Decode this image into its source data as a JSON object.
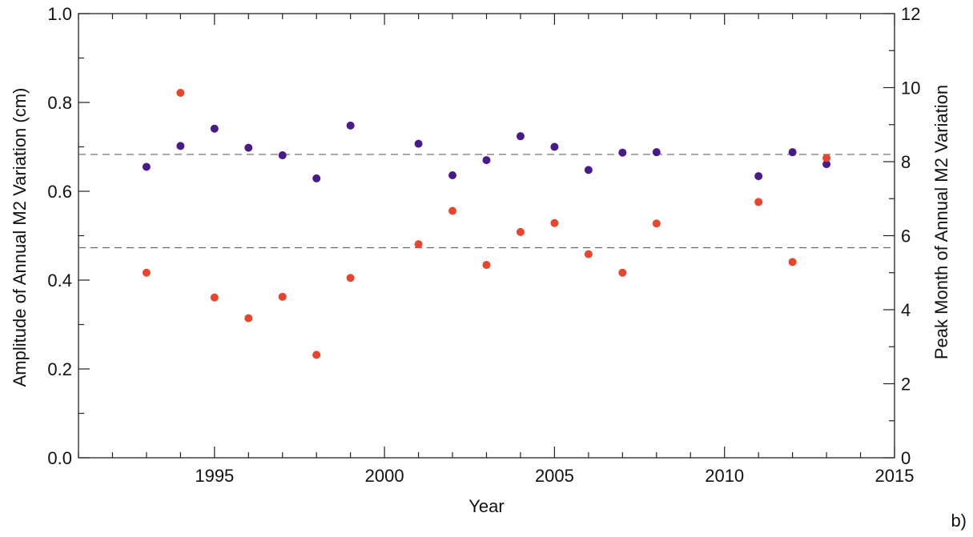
{
  "chart_data": {
    "type": "scatter",
    "title": "",
    "xlabel": "Year",
    "ylabel_left": "Amplitude of Annual M2 Variation (cm)",
    "ylabel_right": "Peak Month of Annual M2 Variation",
    "panel_label": "b)",
    "xlim": [
      1991,
      2015
    ],
    "ylim_left": [
      0.0,
      1.0
    ],
    "ylim_right": [
      0,
      12
    ],
    "x_ticks": [
      "1995",
      "2000",
      "2005",
      "2010",
      "2015"
    ],
    "y_left_ticks": [
      "0.0",
      "0.2",
      "0.4",
      "0.6",
      "0.8",
      "1.0"
    ],
    "y_right_ticks": [
      "0",
      "2",
      "4",
      "6",
      "8",
      "10",
      "12"
    ],
    "grid": false,
    "reference_lines": [
      {
        "axis": "left",
        "y": 0.683,
        "style": "dashed"
      },
      {
        "axis": "left",
        "y": 0.473,
        "style": "dashed"
      }
    ],
    "series": [
      {
        "axis": "left",
        "color": "#4a1a8a",
        "points": [
          [
            1993,
            0.655
          ],
          [
            1994,
            0.702
          ],
          [
            1995,
            0.741
          ],
          [
            1996,
            0.698
          ],
          [
            1997,
            0.681
          ],
          [
            1998,
            0.629
          ],
          [
            1999,
            0.748
          ],
          [
            2001,
            0.707
          ],
          [
            2002,
            0.636
          ],
          [
            2003,
            0.67
          ],
          [
            2004,
            0.724
          ],
          [
            2005,
            0.7
          ],
          [
            2006,
            0.648
          ],
          [
            2007,
            0.687
          ],
          [
            2008,
            0.688
          ],
          [
            2011,
            0.634
          ],
          [
            2012,
            0.688
          ],
          [
            2013,
            0.661
          ]
        ]
      },
      {
        "axis": "right",
        "color": "#e8452c",
        "points": [
          [
            1993,
            5.0
          ],
          [
            1994,
            9.86
          ],
          [
            1995,
            4.33
          ],
          [
            1996,
            3.77
          ],
          [
            1997,
            4.35
          ],
          [
            1998,
            2.78
          ],
          [
            1999,
            4.86
          ],
          [
            2001,
            5.77
          ],
          [
            2002,
            6.67
          ],
          [
            2003,
            5.21
          ],
          [
            2004,
            6.1
          ],
          [
            2005,
            6.34
          ],
          [
            2006,
            5.5
          ],
          [
            2007,
            5.0
          ],
          [
            2008,
            6.33
          ],
          [
            2011,
            6.91
          ],
          [
            2012,
            5.29
          ],
          [
            2013,
            8.1
          ]
        ]
      }
    ]
  }
}
